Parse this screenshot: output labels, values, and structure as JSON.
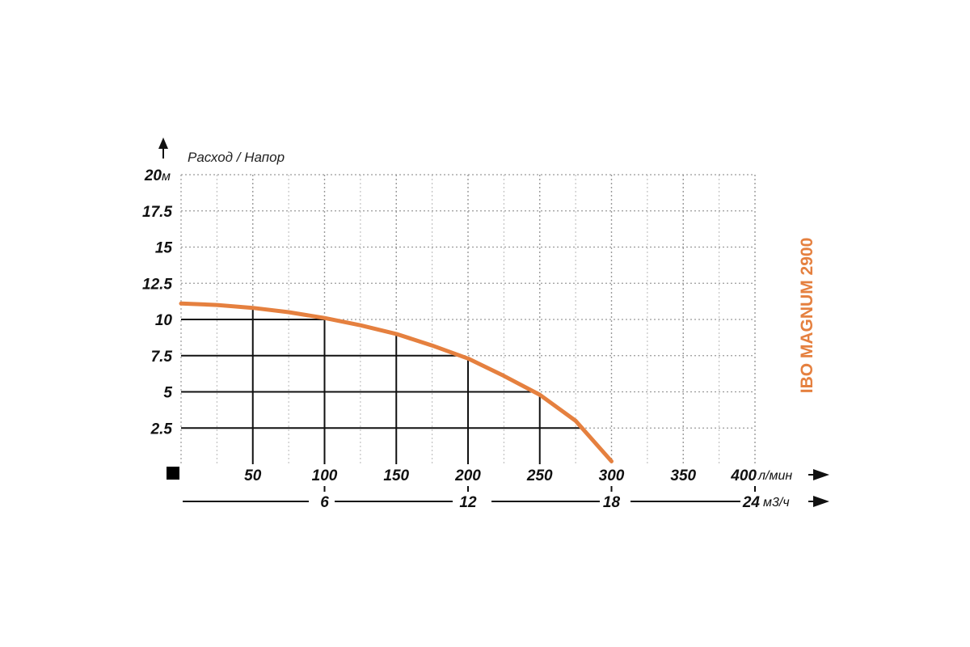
{
  "chart_data": {
    "type": "line",
    "axis_title": "Расход / Напор",
    "side_label": "IBO MAGNUM 2900",
    "y_unit": "м",
    "x_unit": "л/мин",
    "x2_unit": "м3/ч",
    "y_ticks": [
      "20",
      "17.5",
      "15",
      "12.5",
      "10",
      "7.5",
      "5",
      "2.5"
    ],
    "y_values": [
      20,
      17.5,
      15,
      12.5,
      10,
      7.5,
      5,
      2.5
    ],
    "x_ticks": [
      "50",
      "100",
      "150",
      "200",
      "250",
      "300",
      "350",
      "400"
    ],
    "x_values": [
      50,
      100,
      150,
      200,
      250,
      300,
      350,
      400
    ],
    "x2_ticks": [
      "6",
      "12",
      "18",
      "24"
    ],
    "x2_values": [
      6,
      12,
      18,
      24
    ],
    "xlim": [
      0,
      400
    ],
    "ylim": [
      0,
      20
    ],
    "grid": true,
    "series": [
      {
        "x": [
          0,
          25,
          50,
          75,
          100,
          125,
          150,
          175,
          200,
          225,
          250,
          275,
          300
        ],
        "y": [
          11.1,
          11.0,
          10.8,
          10.5,
          10.1,
          9.6,
          9.0,
          8.2,
          7.3,
          6.1,
          4.8,
          3.0,
          0.2
        ]
      }
    ],
    "highlight_points": [
      {
        "x": 50,
        "y": 10.8
      },
      {
        "x": 100,
        "y": 10.1
      },
      {
        "x": 150,
        "y": 9.0
      },
      {
        "x": 200,
        "y": 7.3
      },
      {
        "x": 250,
        "y": 4.8
      },
      {
        "x": 275,
        "y": 3.0
      }
    ],
    "colors": {
      "curve": "#E5803F",
      "grid_dotted": "#9a9a9a",
      "grid_solid": "#111111",
      "side_label": "#E5803F"
    }
  }
}
